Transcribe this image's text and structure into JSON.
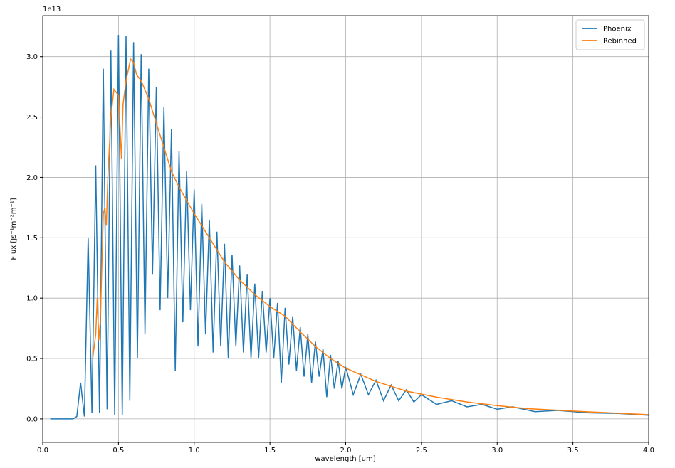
{
  "chart_data": {
    "type": "line",
    "y_offset_label": "1e13",
    "xlabel": "wavelength [um]",
    "ylabel": "Flux [Js⁻¹m⁻²m⁻¹]",
    "xlim": [
      0,
      4
    ],
    "ylim": [
      -0.195,
      3.34
    ],
    "xticks": [
      {
        "value": 0,
        "label": "0.0"
      },
      {
        "value": 0.5,
        "label": "0.5"
      },
      {
        "value": 1,
        "label": "1.0"
      },
      {
        "value": 1.5,
        "label": "1.5"
      },
      {
        "value": 2,
        "label": "2.0"
      },
      {
        "value": 2.5,
        "label": "2.5"
      },
      {
        "value": 3,
        "label": "3.0"
      },
      {
        "value": 3.5,
        "label": "3.5"
      },
      {
        "value": 4,
        "label": "4.0"
      }
    ],
    "yticks": [
      {
        "value": 0,
        "label": "0.0"
      },
      {
        "value": 0.5,
        "label": "0.5"
      },
      {
        "value": 1,
        "label": "1.0"
      },
      {
        "value": 1.5,
        "label": "1.5"
      },
      {
        "value": 2,
        "label": "2.0"
      },
      {
        "value": 2.5,
        "label": "2.5"
      },
      {
        "value": 3,
        "label": "3.0"
      }
    ],
    "grid": true,
    "legend": "upper-right",
    "series": [
      {
        "name": "Phoenix",
        "color": "#1f77b4",
        "x": [
          0.05,
          0.1,
          0.15,
          0.2,
          0.225,
          0.25,
          0.275,
          0.3,
          0.325,
          0.35,
          0.375,
          0.4,
          0.425,
          0.45,
          0.475,
          0.5,
          0.525,
          0.55,
          0.575,
          0.6,
          0.625,
          0.65,
          0.675,
          0.7,
          0.725,
          0.75,
          0.775,
          0.8,
          0.825,
          0.85,
          0.875,
          0.9,
          0.925,
          0.95,
          0.975,
          1.0,
          1.025,
          1.05,
          1.075,
          1.1,
          1.125,
          1.15,
          1.175,
          1.2,
          1.225,
          1.25,
          1.275,
          1.3,
          1.325,
          1.35,
          1.375,
          1.4,
          1.425,
          1.45,
          1.475,
          1.5,
          1.525,
          1.55,
          1.575,
          1.6,
          1.625,
          1.65,
          1.675,
          1.7,
          1.725,
          1.75,
          1.775,
          1.8,
          1.825,
          1.85,
          1.875,
          1.9,
          1.925,
          1.95,
          1.975,
          2.0,
          2.05,
          2.1,
          2.15,
          2.2,
          2.25,
          2.3,
          2.35,
          2.4,
          2.45,
          2.5,
          2.6,
          2.7,
          2.8,
          2.9,
          3.0,
          3.1,
          3.25,
          3.4,
          3.6,
          3.8,
          4.0
        ],
        "values": [
          0,
          0,
          0,
          0,
          0.02,
          0.3,
          0.02,
          1.5,
          0.05,
          2.1,
          0.05,
          2.9,
          0.08,
          3.05,
          0.03,
          3.18,
          0.03,
          3.17,
          0.15,
          3.12,
          0.5,
          3.02,
          0.7,
          2.9,
          1.2,
          2.75,
          0.9,
          2.58,
          1.0,
          2.4,
          0.4,
          2.22,
          0.8,
          2.05,
          0.9,
          1.9,
          0.6,
          1.78,
          0.7,
          1.65,
          0.55,
          1.55,
          0.6,
          1.45,
          0.5,
          1.36,
          0.6,
          1.27,
          0.55,
          1.2,
          0.5,
          1.12,
          0.5,
          1.06,
          0.55,
          1.0,
          0.5,
          0.96,
          0.3,
          0.92,
          0.45,
          0.85,
          0.4,
          0.76,
          0.35,
          0.7,
          0.3,
          0.64,
          0.35,
          0.58,
          0.18,
          0.53,
          0.25,
          0.48,
          0.25,
          0.43,
          0.2,
          0.37,
          0.2,
          0.32,
          0.15,
          0.28,
          0.15,
          0.24,
          0.14,
          0.2,
          0.12,
          0.15,
          0.1,
          0.12,
          0.08,
          0.1,
          0.06,
          0.07,
          0.05,
          0.045,
          0.03
        ]
      },
      {
        "name": "Rebinned",
        "color": "#ff7f0e",
        "x": [
          0.33,
          0.35,
          0.36,
          0.37,
          0.38,
          0.4,
          0.41,
          0.42,
          0.43,
          0.45,
          0.47,
          0.5,
          0.52,
          0.53,
          0.55,
          0.58,
          0.6,
          0.62,
          0.65,
          0.7,
          0.75,
          0.8,
          0.85,
          0.9,
          1.0,
          1.1,
          1.2,
          1.3,
          1.4,
          1.5,
          1.6,
          1.7,
          1.8,
          1.9,
          2.0,
          2.2,
          2.4,
          2.6,
          2.8,
          3.0,
          3.2,
          3.5,
          4.0
        ],
        "values": [
          0.5,
          0.7,
          1.0,
          0.65,
          0.8,
          1.7,
          1.75,
          1.6,
          2.0,
          2.5,
          2.73,
          2.68,
          2.15,
          2.6,
          2.8,
          2.98,
          2.95,
          2.85,
          2.8,
          2.65,
          2.45,
          2.25,
          2.05,
          1.92,
          1.7,
          1.5,
          1.3,
          1.15,
          1.03,
          0.93,
          0.85,
          0.72,
          0.6,
          0.5,
          0.42,
          0.31,
          0.23,
          0.18,
          0.14,
          0.11,
          0.085,
          0.065,
          0.035
        ]
      }
    ]
  }
}
